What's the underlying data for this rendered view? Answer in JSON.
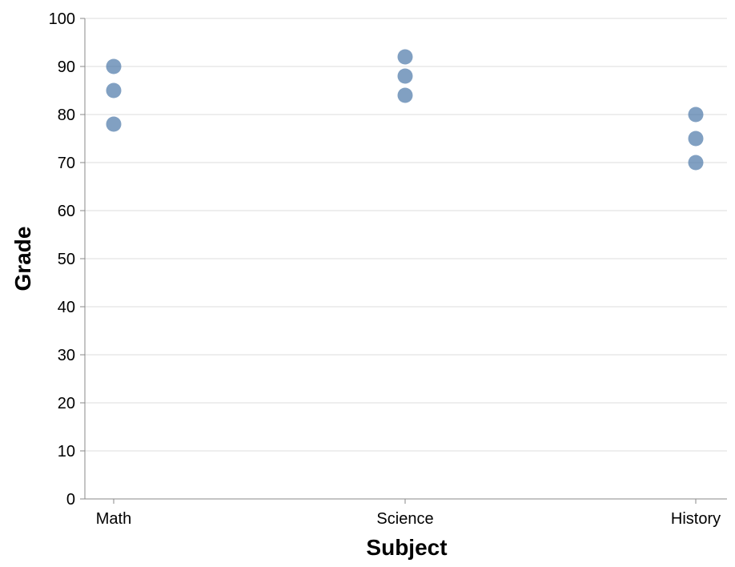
{
  "chart_data": {
    "type": "scatter",
    "title": "",
    "xlabel": "Subject",
    "ylabel": "Grade",
    "categories": [
      "Math",
      "Science",
      "History"
    ],
    "ylim": [
      0,
      100
    ],
    "yticks": [
      0,
      10,
      20,
      30,
      40,
      50,
      60,
      70,
      80,
      90,
      100
    ],
    "grid": true,
    "points": [
      {
        "x": "Math",
        "y": 90
      },
      {
        "x": "Math",
        "y": 85
      },
      {
        "x": "Math",
        "y": 78
      },
      {
        "x": "Science",
        "y": 92
      },
      {
        "x": "Science",
        "y": 88
      },
      {
        "x": "Science",
        "y": 84
      },
      {
        "x": "History",
        "y": 80
      },
      {
        "x": "History",
        "y": 75
      },
      {
        "x": "History",
        "y": 70
      }
    ],
    "point_color": "#4c78a8"
  }
}
